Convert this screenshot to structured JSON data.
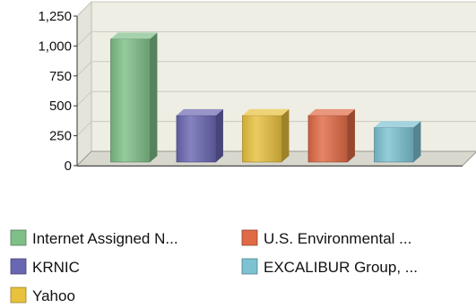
{
  "chart_data": {
    "type": "bar",
    "title": "",
    "xlabel": "",
    "ylabel": "",
    "ylim": [
      0,
      1250
    ],
    "y_ticks": [
      "0",
      "250",
      "500",
      "750",
      "1,000",
      "1,250"
    ],
    "grid": true,
    "legend_position": "bottom",
    "style": "3d",
    "categories": [
      "Internet Assigned N...",
      "KRNIC",
      "Yahoo",
      "U.S. Environmental ...",
      "EXCALIBUR Group, ..."
    ],
    "values": [
      1090,
      450,
      450,
      450,
      350
    ],
    "colors": [
      "#7fbf88",
      "#6a67b2",
      "#e8c13d",
      "#e06a45",
      "#7cc2d2"
    ]
  },
  "colors": {
    "wall": "#eeeee4",
    "floor": "#d8d8cf",
    "grid": "#c9c9bf",
    "axis": "#333333"
  }
}
